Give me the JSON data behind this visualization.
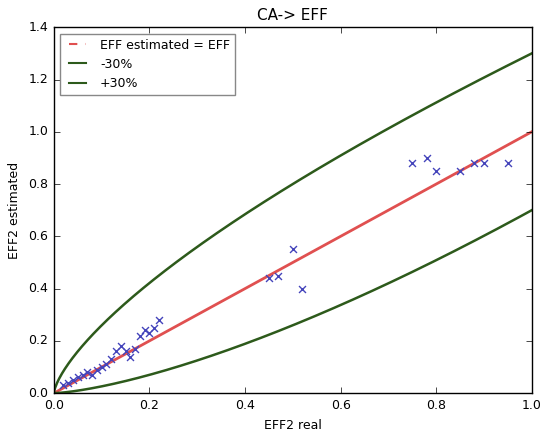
{
  "title": "CA-> EFF",
  "xlabel": "EFF2 real",
  "ylabel": "EFF2 estimated",
  "xlim": [
    0.0,
    1.0
  ],
  "ylim": [
    0.0,
    1.4
  ],
  "xticks": [
    0.0,
    0.2,
    0.4,
    0.6,
    0.8,
    1.0
  ],
  "yticks": [
    0.0,
    0.2,
    0.4,
    0.6,
    0.8,
    1.0,
    1.2,
    1.4
  ],
  "scatter_x": [
    0.02,
    0.03,
    0.04,
    0.05,
    0.06,
    0.07,
    0.08,
    0.09,
    0.1,
    0.11,
    0.12,
    0.13,
    0.14,
    0.15,
    0.16,
    0.17,
    0.18,
    0.19,
    0.2,
    0.21,
    0.22,
    0.45,
    0.47,
    0.5,
    0.52,
    0.75,
    0.78,
    0.8,
    0.85,
    0.88,
    0.9,
    0.95
  ],
  "scatter_y": [
    0.03,
    0.04,
    0.05,
    0.06,
    0.07,
    0.08,
    0.07,
    0.09,
    0.1,
    0.11,
    0.13,
    0.16,
    0.18,
    0.16,
    0.14,
    0.17,
    0.22,
    0.24,
    0.23,
    0.25,
    0.28,
    0.44,
    0.45,
    0.55,
    0.4,
    0.88,
    0.9,
    0.85,
    0.85,
    0.88,
    0.88,
    0.88
  ],
  "identity_color": "#e05050",
  "minus30_color": "#2d5a1b",
  "plus30_color": "#2d5a1b",
  "scatter_color": "#4444bb",
  "background_color": "#ffffff",
  "legend_loc": "upper left",
  "title_fontsize": 11,
  "axis_fontsize": 9,
  "tick_fontsize": 9,
  "upper_curve_power": 0.7,
  "lower_curve_power": 1.43
}
